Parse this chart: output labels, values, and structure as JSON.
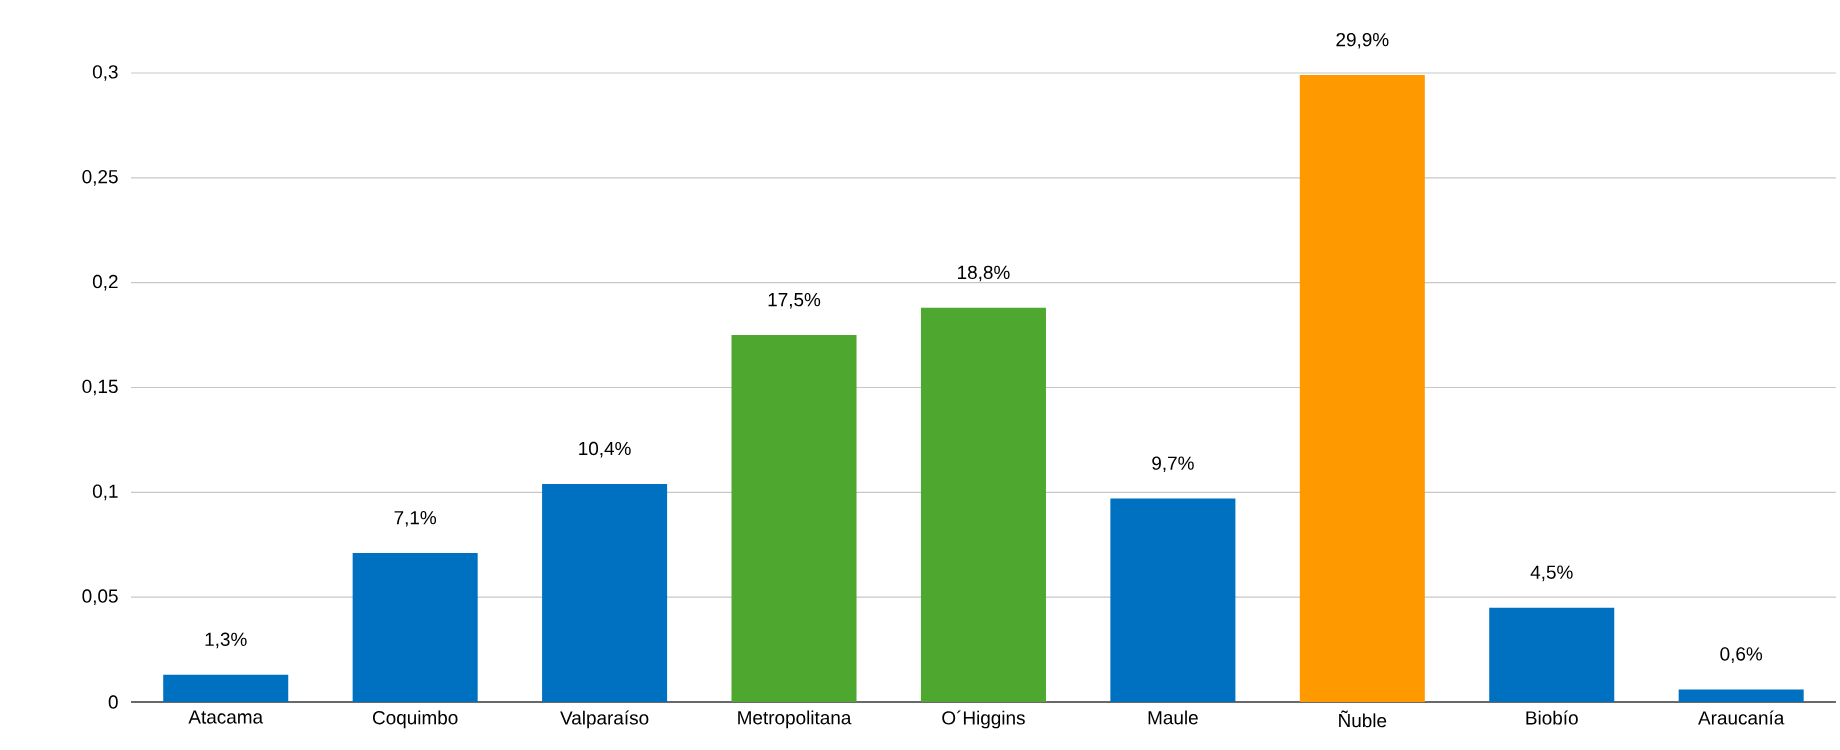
{
  "chart_data": {
    "type": "bar",
    "categories": [
      "Atacama",
      "Coquimbo",
      "Valparaíso",
      "Metropolitana",
      "O´Higgins",
      "Maule",
      "Ñuble",
      "Biobío",
      "Araucanía"
    ],
    "values": [
      0.013,
      0.071,
      0.104,
      0.175,
      0.188,
      0.097,
      0.299,
      0.045,
      0.006
    ],
    "colors": [
      "#0070c0",
      "#0070c0",
      "#0070c0",
      "#4ea72e",
      "#4ea72e",
      "#0070c0",
      "#ff9900",
      "#0070c0",
      "#0070c0"
    ],
    "value_labels": [
      "1,3%",
      "7,1%",
      "10,4%",
      "17,5%",
      "18,8%",
      "9,7%",
      "29,9%",
      "4,5%",
      "0,6%"
    ],
    "ylim": [
      0,
      0.3
    ],
    "yticks": [
      0,
      {
        "value": 0.05,
        "label": "0,05"
      },
      {
        "value": 0.1,
        "label": "0,1"
      },
      {
        "value": 0.15,
        "label": "0,15"
      },
      {
        "value": 0.2,
        "label": "0,2"
      },
      {
        "value": 0.25,
        "label": "0,25"
      },
      {
        "value": 0.3,
        "label": "0,3"
      }
    ],
    "grid": "y"
  }
}
